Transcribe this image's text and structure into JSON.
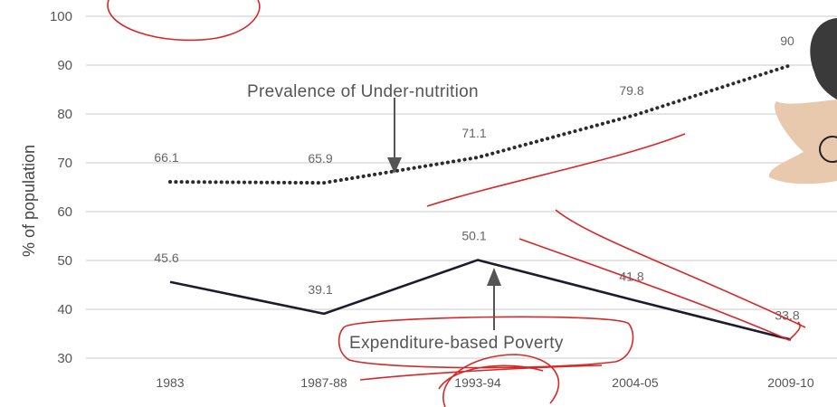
{
  "chart_data": {
    "type": "line",
    "xlabel": "",
    "ylabel": "% of population",
    "ylim": [
      30,
      100
    ],
    "yticks": [
      30,
      40,
      50,
      60,
      70,
      80,
      90,
      100
    ],
    "grid": true,
    "categories": [
      "1983",
      "1987-88",
      "1993-94",
      "2004-05",
      "2009-10"
    ],
    "series": [
      {
        "name": "Prevalence of Under-nutrition",
        "style": "dotted",
        "color": "#2b2b2b",
        "x": [
          "1983",
          "1987-88",
          "1993-94",
          "2004-05",
          "2009-10"
        ],
        "values": [
          66.1,
          65.9,
          71.1,
          79.8,
          90
        ],
        "labels": [
          "66.1",
          "65.9",
          "71.1",
          "79.8",
          "90"
        ]
      },
      {
        "name": "Expenditure-based Poverty",
        "style": "solid",
        "color": "#1c1c2e",
        "x": [
          "1983",
          "1987-88",
          "1993-94",
          "2004-05",
          "2009-10"
        ],
        "values": [
          45.6,
          39.1,
          50.1,
          41.8,
          33.8
        ],
        "labels": [
          "45.6",
          "39.1",
          "50.1",
          "41.8",
          "33.8"
        ]
      }
    ]
  },
  "colors": {
    "grid": "#dcdcdc",
    "pen": "#d62828",
    "arrow": "#555555"
  }
}
